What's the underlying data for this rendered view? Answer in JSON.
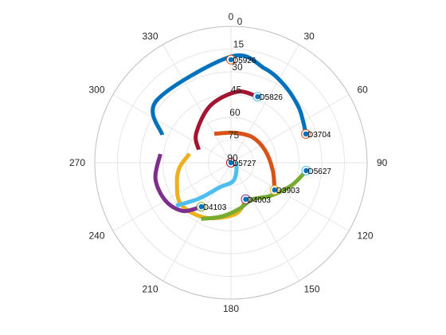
{
  "chart_data": {
    "type": "polar-line",
    "title": "",
    "theta_zero": "top",
    "theta_direction": "clockwise",
    "theta_ticks": [
      0,
      30,
      60,
      90,
      120,
      150,
      180,
      210,
      240,
      270,
      300,
      330
    ],
    "r_direction": "reversed",
    "r_lim": [
      0,
      90
    ],
    "r_ticks": [
      0,
      15,
      30,
      45,
      60,
      75,
      90
    ],
    "r_tick_angle": 3,
    "grid": true,
    "series": [
      {
        "color": "#0072BD",
        "points": [
          [
            292,
            41
          ],
          [
            310,
            26
          ],
          [
            0,
            20
          ],
          [
            20,
            24
          ],
          [
            35,
            28
          ],
          [
            50,
            32
          ],
          [
            60,
            35
          ],
          [
            69,
            37
          ]
        ],
        "marker": {
          "theta": 69,
          "r": 37,
          "label": "D3704"
        }
      },
      {
        "color": "#D95319",
        "points": [
          [
            330,
            68
          ],
          [
            350,
            70
          ],
          [
            10,
            70
          ],
          [
            40,
            68
          ],
          [
            70,
            66
          ],
          [
            100,
            62
          ],
          [
            122,
            56
          ]
        ],
        "marker": {
          "theta": 122,
          "r": 56,
          "label": "D3903"
        }
      },
      {
        "color": "#EDB120",
        "points": [
          [
            282,
            62
          ],
          [
            265,
            56
          ],
          [
            250,
            52
          ],
          [
            230,
            47
          ],
          [
            205,
            50
          ],
          [
            175,
            56
          ],
          [
            158,
            64
          ]
        ],
        "marker": {
          "theta": 158,
          "r": 64,
          "label": "D4003"
        }
      },
      {
        "color": "#7E2F8E",
        "points": [
          [
            277,
            43
          ],
          [
            258,
            39
          ],
          [
            240,
            40
          ],
          [
            225,
            45
          ],
          [
            214,
            55
          ]
        ],
        "marker": {
          "theta": 214,
          "r": 55,
          "label": "D4103"
        }
      },
      {
        "color": "#77AC30",
        "points": [
          [
            208,
            48
          ],
          [
            190,
            54
          ],
          [
            170,
            59
          ],
          [
            150,
            62
          ],
          [
            130,
            56
          ],
          [
            110,
            47
          ],
          [
            96,
            40
          ]
        ],
        "marker": {
          "theta": 96,
          "r": 40,
          "label": "D5627"
        }
      },
      {
        "color": "#4DBEEE",
        "points": [
          [
            232,
            44
          ],
          [
            222,
            58
          ],
          [
            205,
            72
          ],
          [
            172,
            78
          ],
          [
            115,
            86
          ],
          [
            99,
            90
          ]
        ],
        "marker": {
          "theta": 99,
          "r": 90,
          "label": "D5727"
        }
      },
      {
        "color": "#A2142F",
        "points": [
          [
            292,
            67
          ],
          [
            310,
            60
          ],
          [
            340,
            50
          ],
          [
            5,
            43
          ],
          [
            22,
            43
          ]
        ],
        "marker": {
          "theta": 22,
          "r": 43,
          "label": "D5826"
        }
      },
      {
        "color": "#EDB120",
        "points": [],
        "marker": {
          "theta": 0,
          "r": 22,
          "label": "D5926"
        }
      }
    ],
    "marker_ring_colors": {
      "D3704": "#D95319",
      "D3903": "#EDB120",
      "D4003": "#7E2F8E",
      "D4103": "#77AC30",
      "D5627": "#4DBEEE",
      "D5727": "#A2142F",
      "D5826": "#4DBEEE",
      "D5926": "#D95319"
    },
    "marker_dot_color": "#0072BD"
  }
}
